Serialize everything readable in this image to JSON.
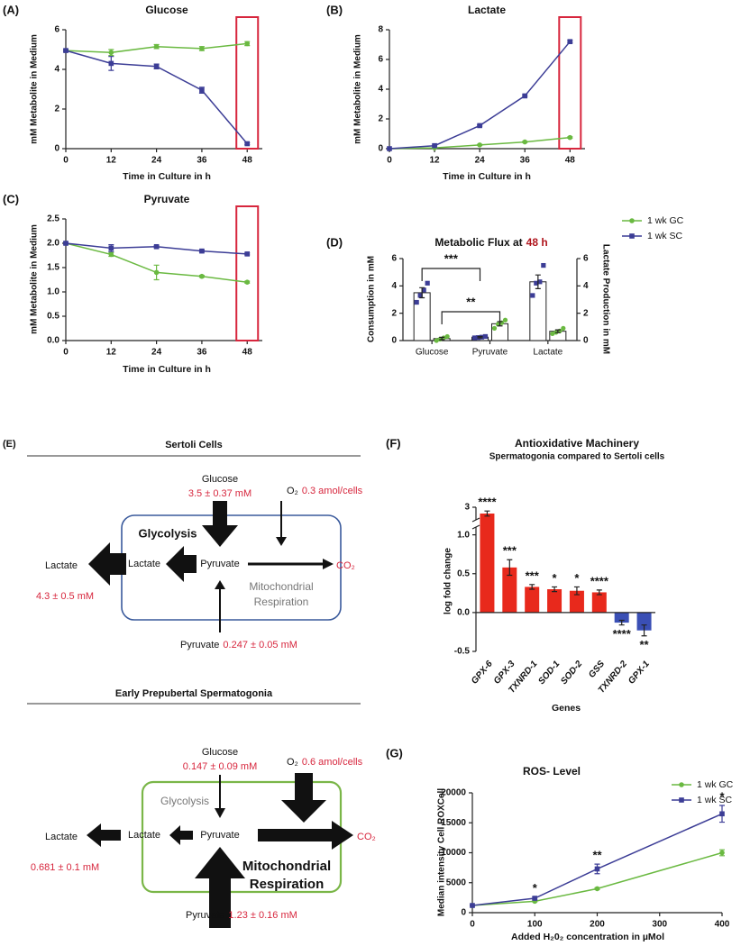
{
  "chart_data": [
    {
      "type": "line",
      "label": "(A)",
      "title": "Glucose",
      "x_label": "Time in Culture in h",
      "y_label": "mM Metabolite in Medium",
      "x": [
        0,
        12,
        24,
        36,
        48
      ],
      "xlim": [
        0,
        52
      ],
      "xticks": [
        0,
        12,
        24,
        36,
        48
      ],
      "ylim": [
        0,
        6
      ],
      "yticks": [
        0,
        2,
        4,
        6
      ],
      "highlight_x": 48,
      "legend": "outside right",
      "series": [
        {
          "name": "1 wk GC",
          "color": "#6ab941",
          "marker": "circle",
          "values": [
            4.95,
            4.85,
            5.15,
            5.05,
            5.3
          ],
          "errors": [
            0.05,
            0.15,
            0.1,
            0.1,
            0.1
          ]
        },
        {
          "name": "1 wk SC",
          "color": "#3c3d96",
          "marker": "square",
          "values": [
            4.95,
            4.3,
            4.15,
            2.95,
            0.25
          ],
          "errors": [
            0.05,
            0.35,
            0.12,
            0.15,
            0.05
          ]
        }
      ]
    },
    {
      "type": "line",
      "label": "(B)",
      "title": "Lactate",
      "x_label": "Time in Culture in h",
      "y_label": "mM Metabolite in Medium",
      "x": [
        0,
        12,
        24,
        36,
        48
      ],
      "xlim": [
        0,
        52
      ],
      "xticks": [
        0,
        12,
        24,
        36,
        48
      ],
      "ylim": [
        0,
        8
      ],
      "yticks": [
        0,
        2,
        4,
        6,
        8
      ],
      "highlight_x": 48,
      "series": [
        {
          "color": "#6ab941",
          "marker": "circle",
          "values": [
            0,
            0.05,
            0.25,
            0.45,
            0.75
          ],
          "errors": [
            0.02,
            0.03,
            0.03,
            0.04,
            0.05
          ]
        },
        {
          "color": "#3c3d96",
          "marker": "square",
          "values": [
            0,
            0.2,
            1.55,
            3.55,
            7.2
          ],
          "errors": [
            0.02,
            0.03,
            0.05,
            0.06,
            0.08
          ]
        }
      ]
    },
    {
      "type": "line",
      "label": "(C)",
      "title": "Pyruvate",
      "x_label": "Time in Culture in h",
      "y_label": "mM Metabolite in Medium",
      "x": [
        0,
        12,
        24,
        36,
        48
      ],
      "xlim": [
        0,
        52
      ],
      "xticks": [
        0,
        12,
        24,
        36,
        48
      ],
      "ylim": [
        0,
        2.5
      ],
      "yticks": [
        {
          "value": 0,
          "label": "0.0"
        },
        0.5,
        {
          "value": 1,
          "label": "1.0"
        },
        1.5,
        {
          "value": 2,
          "label": "2.0"
        },
        2.5
      ],
      "highlight_x": 48,
      "series": [
        {
          "color": "#6ab941",
          "marker": "circle",
          "values": [
            2.0,
            1.77,
            1.4,
            1.32,
            1.2
          ],
          "errors": [
            0.02,
            0.04,
            0.15,
            0.02,
            0.02
          ]
        },
        {
          "color": "#3c3d96",
          "marker": "square",
          "values": [
            2.0,
            1.9,
            1.93,
            1.84,
            1.78
          ],
          "errors": [
            0.02,
            0.07,
            0.02,
            0.02,
            0.02
          ]
        }
      ]
    },
    {
      "type": "bar",
      "label": "(D)",
      "title": "Metabolic Flux at",
      "title_highlight": "48 h",
      "y_label": "Consumption in mM",
      "y2_label": "Lactate Production in mM",
      "categories": [
        "Glucose",
        "Pyruvate",
        "Lactate"
      ],
      "ylim": [
        0,
        6
      ],
      "yticks": [
        0,
        2,
        4,
        6
      ],
      "y2lim": [
        0,
        6
      ],
      "y2ticks": [
        0,
        2,
        4,
        6
      ],
      "annotations": [
        "***",
        "**"
      ],
      "series": [
        {
          "color": "#3c3d96",
          "marker": "square",
          "values": [
            3.5,
            0.247,
            4.3
          ],
          "errors": [
            0.37,
            0.05,
            0.5
          ],
          "points": [
            [
              2.8,
              3.3,
              3.7,
              4.2
            ],
            [
              0.2,
              0.22,
              0.25,
              0.3
            ],
            [
              3.3,
              4.2,
              4.3,
              5.5
            ]
          ]
        },
        {
          "color": "#6ab941",
          "marker": "circle",
          "values": [
            0.147,
            1.23,
            0.681
          ],
          "errors": [
            0.09,
            0.16,
            0.1
          ],
          "points": [
            [
              0.0,
              0.1,
              0.2,
              0.3
            ],
            [
              0.9,
              1.2,
              1.3,
              1.5
            ],
            [
              0.5,
              0.6,
              0.7,
              0.9
            ]
          ]
        }
      ]
    },
    {
      "type": "bar",
      "label": "(F)",
      "title": "Antioxidative Machinery",
      "subtitle": "Spermatogonia compared to Sertoli cells",
      "x_label": "Genes",
      "y_label": "log fold change",
      "categories": [
        "GPX-6",
        "GPX-3",
        "TXNRD-1",
        "SOD-1",
        "SOD-2",
        "GSS",
        "TXNRD-2",
        "GPX-1"
      ],
      "values": [
        2.95,
        0.58,
        0.33,
        0.3,
        0.28,
        0.26,
        -0.13,
        -0.23
      ],
      "errors": [
        0.02,
        0.1,
        0.03,
        0.03,
        0.05,
        0.03,
        0.03,
        0.07
      ],
      "colors": [
        "#e8291c",
        "#e8291c",
        "#e8291c",
        "#e8291c",
        "#e8291c",
        "#e8291c",
        "#3a4fb5",
        "#3a4fb5"
      ],
      "value_annotations": [
        "****",
        "***",
        "***",
        "*",
        "*",
        "****",
        "****",
        "**"
      ],
      "ylim": [
        -0.5,
        3
      ],
      "ybreak": [
        1.1,
        2.9
      ],
      "yticks": [
        -0.5,
        {
          "value": 0,
          "label": "0.0"
        },
        0.5,
        {
          "value": 1,
          "label": "1.0"
        },
        3
      ]
    },
    {
      "type": "line",
      "label": "(G)",
      "title": "ROS- Level",
      "x_label": "Added H₂0₂ concentration in  µMol",
      "y_label": "Median intensity Cell ROXCell",
      "x": [
        0,
        100,
        200,
        400
      ],
      "xlim": [
        0,
        400
      ],
      "xticks": [
        0,
        100,
        200,
        300,
        400
      ],
      "ylim": [
        0,
        20000
      ],
      "yticks": [
        0,
        5000,
        10000,
        15000,
        20000
      ],
      "legend": "upper right",
      "annotations": [
        null,
        "*",
        "**",
        "*"
      ],
      "series": [
        {
          "name": "1 wk GC",
          "color": "#6ab941",
          "marker": "circle",
          "values": [
            1200,
            1900,
            4000,
            10000
          ],
          "errors": [
            100,
            100,
            150,
            500
          ]
        },
        {
          "name": "1 wk SC",
          "color": "#3c3d96",
          "marker": "square",
          "values": [
            1200,
            2400,
            7300,
            16500
          ],
          "errors": [
            100,
            200,
            800,
            1400
          ]
        }
      ]
    }
  ],
  "diagram": {
    "label": "(E)",
    "panels": [
      {
        "title": "Sertoli Cells",
        "glucose": "Glucose",
        "glucose_conc": "3.5 ± 0.37 mM",
        "oxygen": "O₂",
        "oxygen_rate": "0.3 amol/cells",
        "glycolysis": "Glycolysis",
        "lactate_inner": "Lactate",
        "pyruvate_inner": "Pyruvate",
        "co2": "CO₂",
        "respiration": [
          "Mitochondrial",
          "Respiration"
        ],
        "lactate_outer": "Lactate",
        "lactate_conc": "4.3 ± 0.5 mM",
        "pyruvate_outer": "Pyruvate",
        "pyruvate_conc": "0.247 ± 0.05 mM"
      },
      {
        "title": "Early Prepubertal Spermatogonia",
        "glucose": "Glucose",
        "glucose_conc": "0.147 ± 0.09 mM",
        "oxygen": "O₂",
        "oxygen_rate": "0.6 amol/cells",
        "glycolysis": "Glycolysis",
        "lactate_inner": "Lactate",
        "pyruvate_inner": "Pyruvate",
        "co2": "CO₂",
        "respiration": [
          "Mitochondrial",
          "Respiration"
        ],
        "lactate_outer": "Lactate",
        "lactate_conc": "0.681 ± 0.1 mM",
        "pyruvate_outer": "Pyruvate",
        "pyruvate_conc": "1.23 ± 0.16 mM"
      }
    ]
  }
}
